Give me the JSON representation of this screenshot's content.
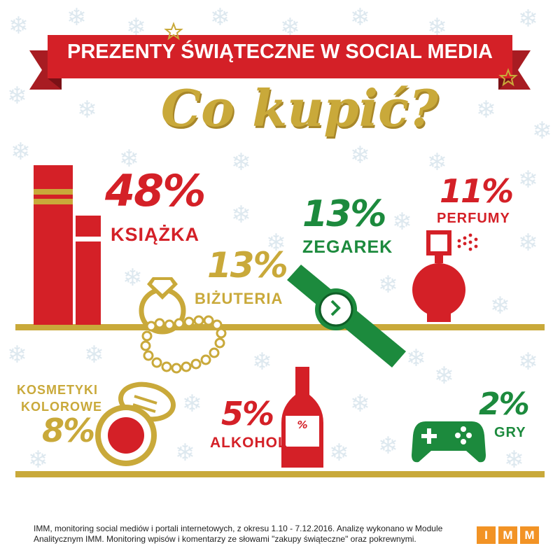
{
  "header": {
    "banner_title": "PREZENTY ŚWIĄTECZNE W SOCIAL MEDIA",
    "subtitle": "Co kupić?"
  },
  "items": [
    {
      "key": "ksiazka",
      "percent": "48%",
      "label": "KSIĄŻKA",
      "color": "#d42027",
      "icon": "books-icon"
    },
    {
      "key": "bizuteria",
      "percent": "13%",
      "label": "BIŻUTERIA",
      "color": "#c9a93a",
      "icon": "ring-pearls-icon"
    },
    {
      "key": "zegarek",
      "percent": "13%",
      "label": "ZEGAREK",
      "color": "#1c8a3d",
      "icon": "watch-icon"
    },
    {
      "key": "perfumy",
      "percent": "11%",
      "label": "PERFUMY",
      "color": "#d42027",
      "icon": "perfume-icon"
    },
    {
      "key": "kosmetyki",
      "percent": "8%",
      "label_line1": "KOSMETYKI",
      "label_line2": "KOLOROWE",
      "color": "#c9a93a",
      "icon": "compact-powder-icon"
    },
    {
      "key": "alkohol",
      "percent": "5%",
      "label": "ALKOHOL",
      "bottle_label": "%",
      "color": "#d42027",
      "icon": "bottle-icon"
    },
    {
      "key": "gry",
      "percent": "2%",
      "label": "GRY",
      "color": "#1c8a3d",
      "icon": "gamepad-icon"
    }
  ],
  "footer": {
    "note": "IMM, monitoring social mediów i portali internetowych, z okresu 1.10 - 7.12.2016. Analizę wykonano w Module Analitycznym IMM. Monitoring wpisów i komentarzy ze słowami \"zakupy świąteczne\" oraz pokrewnymi.",
    "logo_letters": [
      "I",
      "M",
      "M"
    ]
  }
}
